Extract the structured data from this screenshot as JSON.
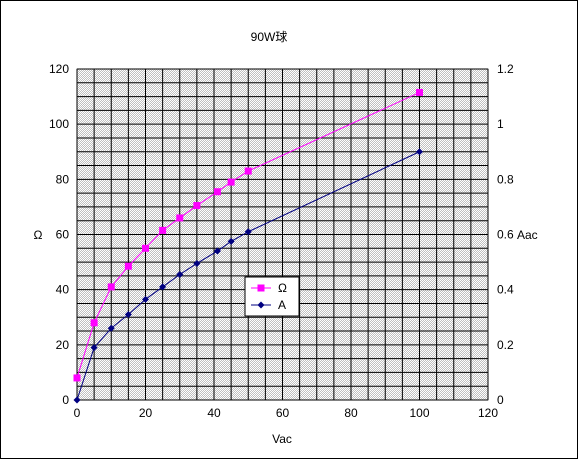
{
  "chart_data": {
    "type": "line",
    "title": "90W球",
    "xlabel": "Vac",
    "ylabel_left": "Ω",
    "ylabel_right": "Aac",
    "xlim": [
      0,
      120
    ],
    "ylim_left": [
      0,
      120
    ],
    "ylim_right": [
      0,
      1.2
    ],
    "x_ticks": [
      "0",
      "20",
      "40",
      "60",
      "80",
      "100",
      "120"
    ],
    "y_left_ticks": [
      "0",
      "20",
      "40",
      "60",
      "80",
      "100",
      "120"
    ],
    "y_right_ticks": [
      "0",
      "0.2",
      "0.4",
      "0.6",
      "0.8",
      "1",
      "1.2"
    ],
    "grid": true,
    "legend_position": "center",
    "x": [
      0,
      5,
      10,
      15,
      20,
      25,
      30,
      35,
      41,
      45,
      50,
      100
    ],
    "series": [
      {
        "name": "Ω",
        "axis": "left",
        "marker": "square",
        "color": "#ff00ff",
        "values": [
          8,
          28,
          41,
          48.5,
          55,
          61.5,
          66,
          70.5,
          75.5,
          79,
          83,
          111.5
        ]
      },
      {
        "name": "A",
        "axis": "right",
        "marker": "diamond",
        "color": "#000080",
        "values": [
          0,
          0.19,
          0.26,
          0.31,
          0.365,
          0.41,
          0.455,
          0.495,
          0.54,
          0.575,
          0.61,
          0.9
        ]
      }
    ]
  }
}
